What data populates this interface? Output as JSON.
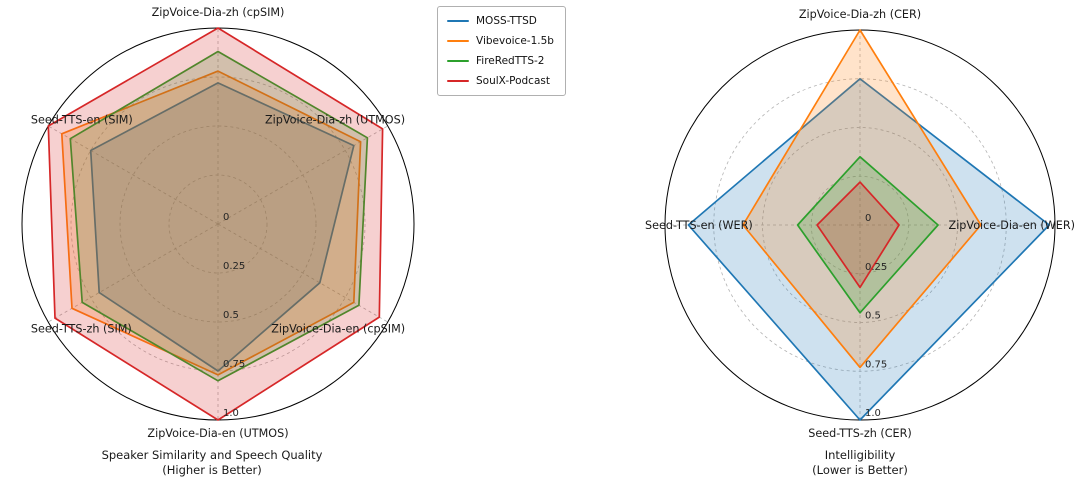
{
  "figure": {
    "background": "#ffffff"
  },
  "legend": {
    "position": "top-center",
    "items": [
      {
        "label": "MOSS-TTSD",
        "color": "#1f77b4"
      },
      {
        "label": "Vibevoice-1.5b",
        "color": "#ff7f0e"
      },
      {
        "label": "FireRedTTS-2",
        "color": "#2ca02c"
      },
      {
        "label": "SoulX-Podcast",
        "color": "#d62728"
      }
    ]
  },
  "chart_data": [
    {
      "type": "radar",
      "title": "Speaker Similarity and Speech Quality",
      "subtitle": "(Higher is Better)",
      "categories": [
        "ZipVoice-Dia-zh (cpSIM)",
        "ZipVoice-Dia-zh (UTMOS)",
        "ZipVoice-Dia-en (cpSIM)",
        "ZipVoice-Dia-en (UTMOS)",
        "Seed-TTS-zh (SIM)",
        "Seed-TTS-en (SIM)"
      ],
      "rlim": [
        0,
        1.0
      ],
      "rticks": [
        0,
        0.25,
        0.5,
        0.75,
        1.0
      ],
      "rtick_labels": [
        "0",
        "0.25",
        "0.5",
        "0.75",
        "1.0"
      ],
      "grid": "dashed-circles-and-spokes",
      "legend_in_figure": true,
      "series": [
        {
          "name": "MOSS-TTSD",
          "color": "#1f77b4",
          "values": [
            0.72,
            0.8,
            0.6,
            0.75,
            0.7,
            0.75
          ]
        },
        {
          "name": "Vibevoice-1.5b",
          "color": "#ff7f0e",
          "values": [
            0.78,
            0.84,
            0.8,
            0.77,
            0.86,
            0.92
          ]
        },
        {
          "name": "FireRedTTS-2",
          "color": "#2ca02c",
          "values": [
            0.88,
            0.88,
            0.83,
            0.8,
            0.8,
            0.87
          ]
        },
        {
          "name": "SoulX-Podcast",
          "color": "#d62728",
          "values": [
            1.0,
            0.97,
            0.95,
            1.0,
            0.96,
            1.0
          ]
        }
      ]
    },
    {
      "type": "radar",
      "title": "Intelligibility",
      "subtitle": "(Lower is Better)",
      "categories": [
        "ZipVoice-Dia-zh (CER)",
        "ZipVoice-Dia-en (WER)",
        "Seed-TTS-zh (CER)",
        "Seed-TTS-en (WER)"
      ],
      "rlim": [
        0,
        1.0
      ],
      "rticks": [
        0,
        0.25,
        0.5,
        0.75,
        1.0
      ],
      "rtick_labels": [
        "0",
        "0.25",
        "0.5",
        "0.75",
        "1.0"
      ],
      "grid": "dashed-circles-and-spokes",
      "series": [
        {
          "name": "MOSS-TTSD",
          "color": "#1f77b4",
          "values": [
            0.75,
            0.97,
            1.0,
            0.88
          ]
        },
        {
          "name": "Vibevoice-1.5b",
          "color": "#ff7f0e",
          "values": [
            1.0,
            0.62,
            0.73,
            0.6
          ]
        },
        {
          "name": "FireRedTTS-2",
          "color": "#2ca02c",
          "values": [
            0.35,
            0.4,
            0.45,
            0.32
          ]
        },
        {
          "name": "SoulX-Podcast",
          "color": "#d62728",
          "values": [
            0.22,
            0.2,
            0.32,
            0.22
          ]
        }
      ]
    }
  ]
}
